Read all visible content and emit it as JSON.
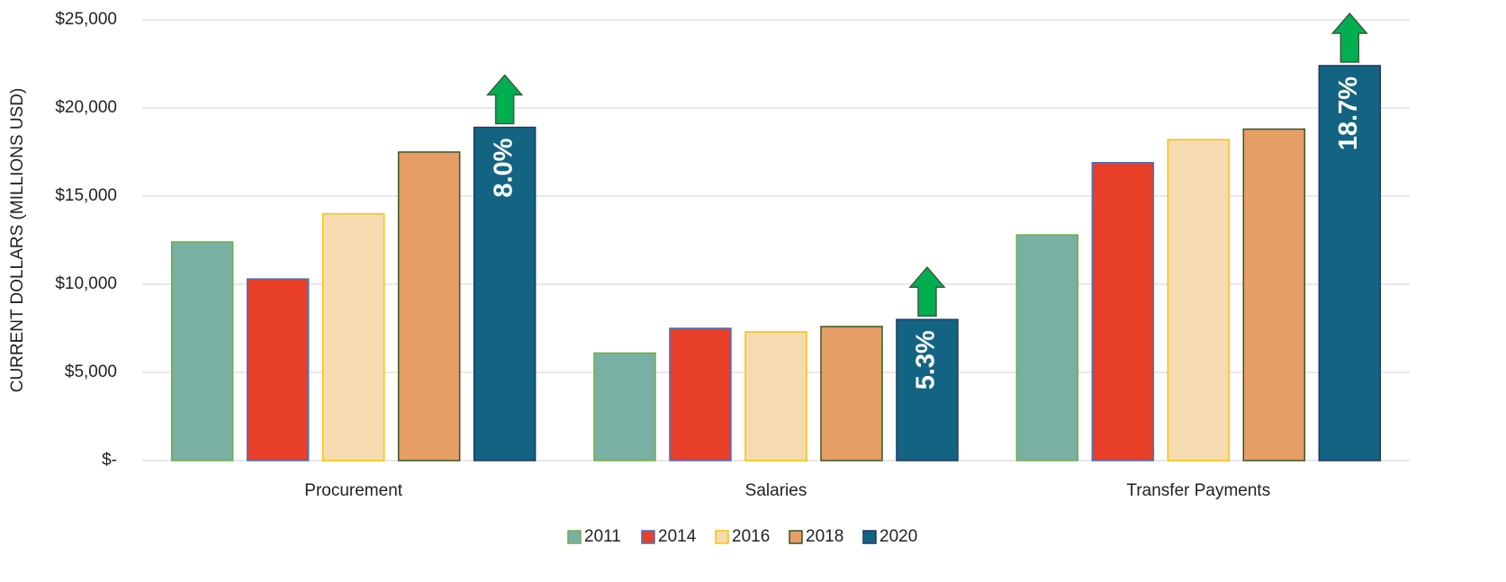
{
  "chart_data": {
    "type": "bar",
    "ylabel": "CURRENT DOLLARS (MILLIONS USD)",
    "categories": [
      "Procurement",
      "Salaries",
      "Transfer Payments"
    ],
    "series": [
      {
        "name": "2011",
        "color": "#78b0a3",
        "edgecolor": "#70ad47",
        "values": [
          12400,
          6100,
          12800
        ]
      },
      {
        "name": "2014",
        "color": "#e84028",
        "edgecolor": "#4472c4",
        "values": [
          10300,
          7500,
          16900
        ]
      },
      {
        "name": "2016",
        "color": "#f7dbb0",
        "edgecolor": "#ffc000",
        "values": [
          14000,
          7300,
          18200
        ]
      },
      {
        "name": "2018",
        "color": "#e69e66",
        "edgecolor": "#375623",
        "values": [
          17500,
          7600,
          18800
        ]
      },
      {
        "name": "2020",
        "color": "#136482",
        "edgecolor": "#1f3864",
        "values": [
          18900,
          8000,
          22400
        ]
      }
    ],
    "annotations": [
      "8.0%",
      "5.3%",
      "18.7%"
    ],
    "annotation_color": "#00b050",
    "ylim": [
      0,
      25000
    ],
    "yticks": [
      {
        "value": 0,
        "label": "$-"
      },
      {
        "value": 5000,
        "label": "$5,000"
      },
      {
        "value": 10000,
        "label": "$10,000"
      },
      {
        "value": 15000,
        "label": "$15,000"
      },
      {
        "value": 20000,
        "label": "$20,000"
      },
      {
        "value": 25000,
        "label": "$25,000"
      }
    ],
    "grid": true,
    "legend": "bottom"
  }
}
